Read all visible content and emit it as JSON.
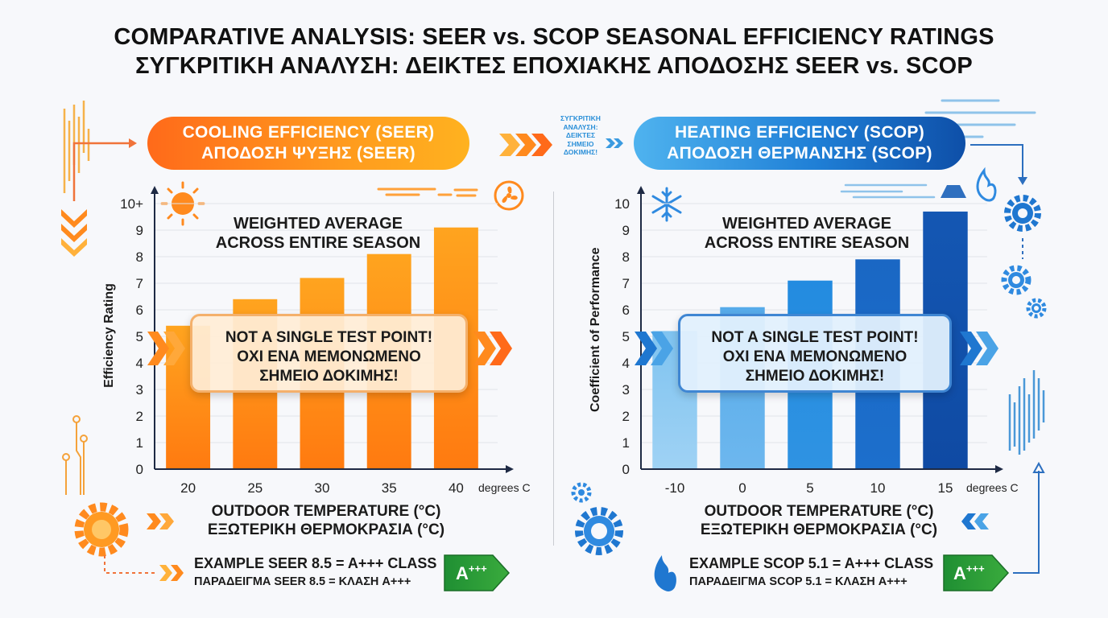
{
  "title": {
    "line1": "COMPARATIVE ANALYSIS: SEER vs. SCOP SEASONAL EFFICIENCY RATINGS",
    "line2": "ΣΥΓΚΡΙΤΙΚΗ ΑΝΑΛΥΣΗ: ΔΕΙΚΤΕΣ ΕΠΟΧΙΑΚΗΣ ΑΠΟΔΟΣΗΣ SEER vs. SCOP"
  },
  "connector_text": [
    "ΣΥΓΚΡΙΤΙΚΗ",
    "ΑΝΑΛΥΣΗ:",
    "ΔΕΙΚΤΕΣ",
    "ΣΗΜΕΙΟ",
    "ΔΟΚΙΜΗΣ!"
  ],
  "colors": {
    "cooling_accent": "#ff8a1e",
    "heating_accent": "#1f7fd6",
    "badge_green": "#2e9a3a"
  },
  "cooling": {
    "header_line1": "COOLING EFFICIENCY (SEER)",
    "header_line2": "ΑΠΟΔΟΣΗ ΨΥΞΗΣ (SEER)",
    "weighted_line1": "WEIGHTED AVERAGE",
    "weighted_line2": "ACROSS ENTIRE SEASON",
    "note_line1": "NOT A SINGLE TEST POINT!",
    "note_line2": "ΟΧΙ ΕΝΑ ΜΕΜΟΝΩΜΕΝΟ",
    "note_line3": "ΣΗΜΕΙΟ ΔΟΚΙΜΗΣ!",
    "xtitle_line1": "OUTDOOR TEMPERATURE (°C)",
    "xtitle_line2": "ΕΞΩΤΕΡΙΚΗ ΘΕΡΜΟΚΡΑΣΙΑ (°C)",
    "example_line1": "EXAMPLE SEER 8.5 = A+++ CLASS",
    "example_line2": "ΠΑΡΑΔΕΙΓΜΑ SEER 8.5 = ΚΛΑΣΗ A+++",
    "badge": "A+++",
    "icons": [
      "sun-icon",
      "fan-icon",
      "gear-icon",
      "circuit-icon"
    ]
  },
  "heating": {
    "header_line1": "HEATING EFFICIENCY (SCOP)",
    "header_line2": "ΑΠΟΔΟΣΗ ΘΕΡΜΑΝΣΗΣ (SCOP)",
    "weighted_line1": "WEIGHTED AVERAGE",
    "weighted_line2": "ACROSS ENTIRE SEASON",
    "note_line1": "NOT A SINGLE TEST POINT!",
    "note_line2": "ΟΧΙ ΕΝΑ ΜΕΜΟΝΩΜΕΝΟ",
    "note_line3": "ΣΗΜΕΙΟ ΔΟΚΙΜΗΣ!",
    "xtitle_line1": "OUTDOOR TEMPERATURE (°C)",
    "xtitle_line2": "ΕΞΩΤΕΡΙΚΗ ΘΕΡΜΟΚΡΑΣΙΑ (°C)",
    "example_line1": "EXAMPLE SCOP 5.1 = A+++ CLASS",
    "example_line2": "ΠΑΡΑΔΕΙΓΜΑ SCOP 5.1 = ΚΛΑΣΗ A+++",
    "badge": "A+++",
    "icons": [
      "snowflake-icon",
      "flame-icon",
      "gear-icon"
    ]
  },
  "chart_data": [
    {
      "type": "bar",
      "ylabel": "Efficiency Rating",
      "xunit": "degrees C",
      "categories": [
        "20",
        "25",
        "30",
        "35",
        "40"
      ],
      "values": [
        5.4,
        6.4,
        7.2,
        8.1,
        9.1
      ],
      "ylim": [
        0,
        10
      ],
      "yticks": [
        "0",
        "1",
        "2",
        "3",
        "4",
        "5",
        "6",
        "7",
        "8",
        "9",
        "10+"
      ],
      "grid": true
    },
    {
      "type": "bar",
      "ylabel": "Coefficient of Performance",
      "xunit": "degrees C",
      "categories": [
        "-10",
        "0",
        "5",
        "10",
        "15"
      ],
      "values": [
        5.2,
        6.1,
        7.1,
        7.9,
        9.7
      ],
      "ylim": [
        0,
        10
      ],
      "yticks": [
        "0",
        "1",
        "2",
        "3",
        "4",
        "5",
        "6",
        "7",
        "8",
        "9",
        "10"
      ],
      "grid": true
    }
  ]
}
